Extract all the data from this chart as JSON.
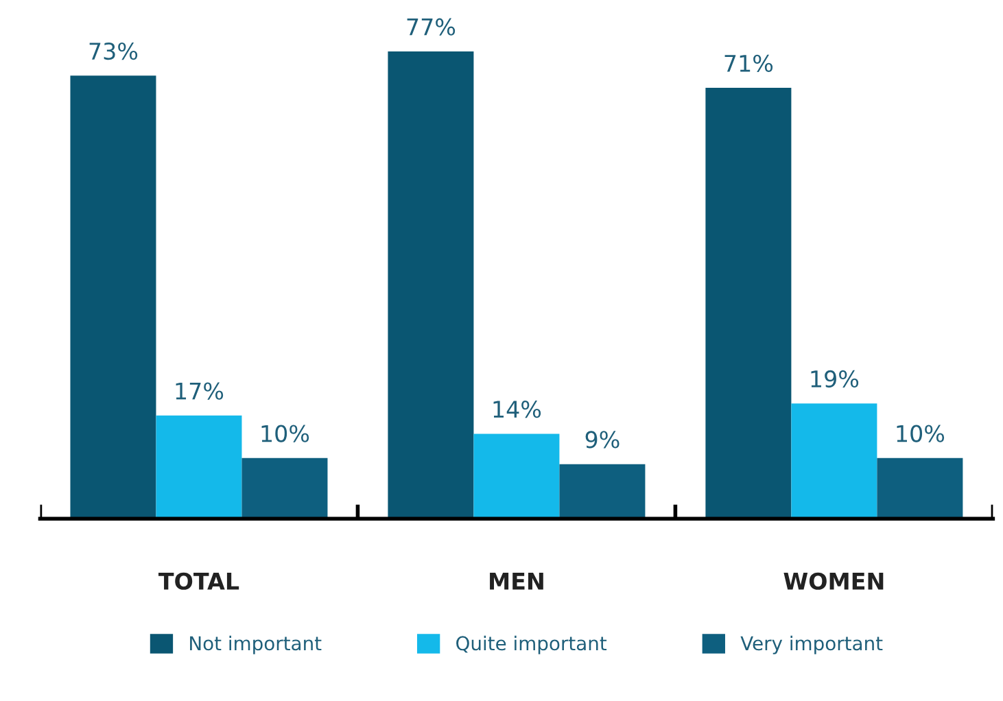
{
  "chart_data": {
    "type": "bar",
    "categories": [
      "TOTAL",
      "MEN",
      "WOMEN"
    ],
    "series": [
      {
        "name": "Not important",
        "color": "#0a5672",
        "values": [
          73,
          77,
          71
        ],
        "value_labels": [
          "73%",
          "77%",
          "71%"
        ]
      },
      {
        "name": "Quite important",
        "color": "#14b9ea",
        "values": [
          17,
          14,
          19
        ],
        "value_labels": [
          "17%",
          "14%",
          "19%"
        ]
      },
      {
        "name": "Very important",
        "color": "#0e5f7f",
        "values": [
          10,
          9,
          10
        ],
        "value_labels": [
          "10%",
          "9%",
          "10%"
        ]
      }
    ],
    "legend": "bottom",
    "grid": false
  }
}
